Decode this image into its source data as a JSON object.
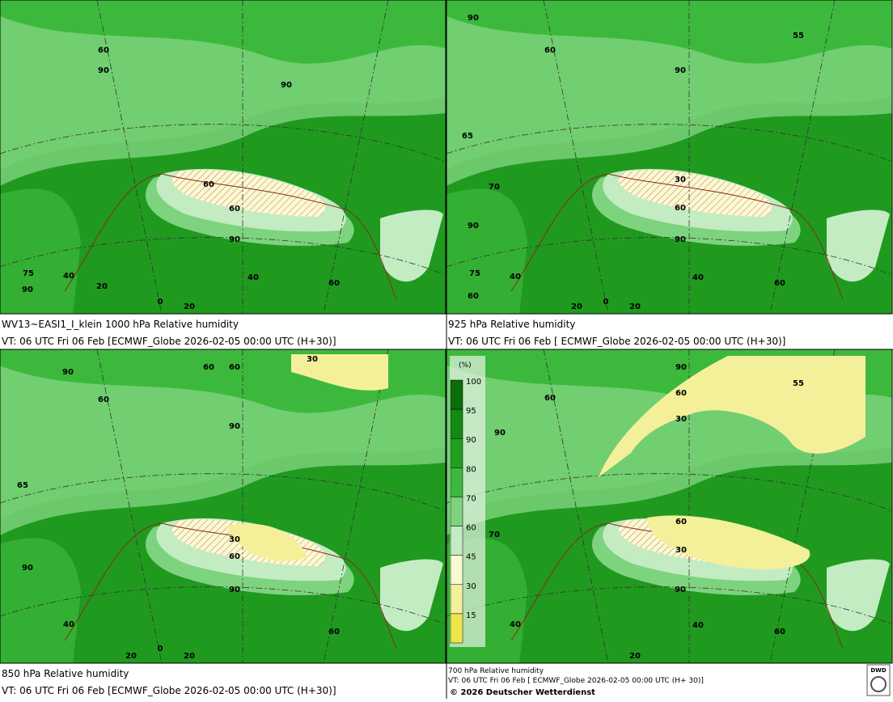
{
  "panels": [
    {
      "caption": [
        "WV13~EASI1_I_klein 1000 hPa Relative humidity",
        "VT: 06 UTC Fri  06 Feb [ECMWF_Globe 2026-02-05 00:00 UTC  (H+30)]"
      ],
      "contour_labels": [
        "60",
        "90",
        "90",
        "60",
        "60",
        "90",
        "40",
        "60",
        "75",
        "90",
        "40",
        "20",
        "0",
        "20"
      ]
    },
    {
      "caption": [
        "925 hPa Relative humidity",
        "VT: 06 UTC Fri  06 Feb [ ECMWF_Globe 2026-02-05 00:00 UTC  (H+30)]"
      ],
      "contour_labels": [
        "90",
        "55",
        "60",
        "90",
        "65",
        "70",
        "30",
        "60",
        "90",
        "90",
        "75",
        "40",
        "40",
        "60",
        "60",
        "20",
        "0",
        "20"
      ]
    },
    {
      "caption": [
        "850 hPa  Relative humidity",
        "VT: 06 UTC Fri  06 Feb [ECMWF_Globe 2026-02-05 00:00 UTC  (H+30)]"
      ],
      "contour_labels": [
        "60",
        "60",
        "30",
        "90",
        "60",
        "90",
        "65",
        "30",
        "60",
        "90",
        "90",
        "40",
        "60",
        "20",
        "0",
        "20"
      ]
    },
    {
      "caption": [
        "700 hPa Relative humidity",
        "VT: 06 UTC Fri  06 Feb [ ECMWF_Globe 2026-02-05 00:00 UTC  (H+ 30)]"
      ],
      "contour_labels": [
        "90",
        "60",
        "60",
        "30",
        "90",
        "55",
        "70",
        "60",
        "30",
        "90",
        "40",
        "60",
        "40",
        "20"
      ]
    }
  ],
  "legend": {
    "unit": "(%)",
    "entries": [
      {
        "label": "100",
        "color": "#0a6e0a"
      },
      {
        "label": "95",
        "color": "#138a13"
      },
      {
        "label": "90",
        "color": "#1fa01f"
      },
      {
        "label": "80",
        "color": "#3cb93c"
      },
      {
        "label": "70",
        "color": "#7ed37e"
      },
      {
        "label": "60",
        "color": "#c3ecc3"
      },
      {
        "label": "45",
        "color": "#fafad2"
      },
      {
        "label": "30",
        "color": "#f4f09a"
      },
      {
        "label": "15",
        "color": "#ece64a"
      }
    ]
  },
  "footer": {
    "copyright": "© 2026 Deutscher Wetterdienst",
    "logo": "DWD"
  }
}
